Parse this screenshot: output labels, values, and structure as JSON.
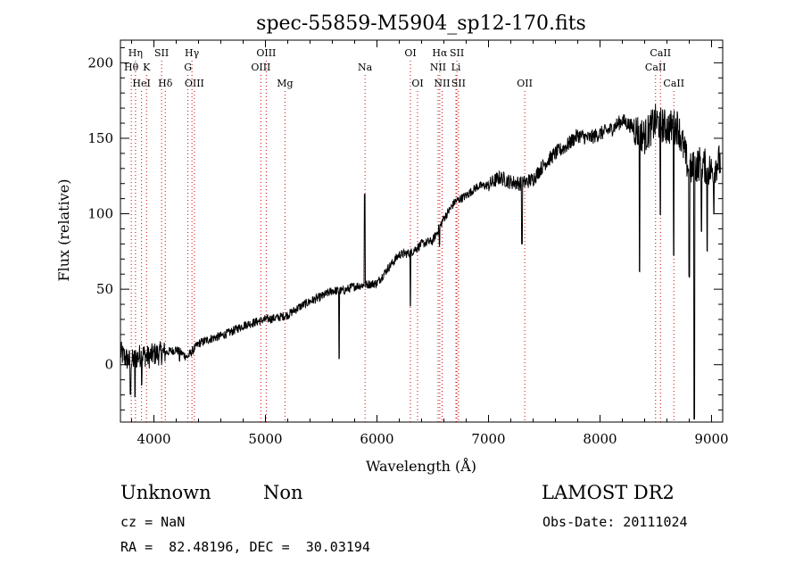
{
  "chart_data": {
    "type": "line",
    "title": "spec-55859-M5904_sp12-170.fits",
    "xlabel": "Wavelength (Å)",
    "ylabel": "Flux (relative)",
    "xlim": [
      3700,
      9100
    ],
    "ylim": [
      -38,
      215
    ],
    "x_ticks": [
      4000,
      5000,
      6000,
      7000,
      8000,
      9000
    ],
    "y_ticks": [
      0,
      50,
      100,
      150,
      200
    ],
    "x_tick_labels": [
      "4000",
      "5000",
      "6000",
      "7000",
      "8000",
      "9000"
    ],
    "y_tick_labels": [
      "0",
      "50",
      "100",
      "150",
      "200"
    ],
    "grid": false,
    "legend": "none",
    "series": [
      {
        "color": "#000000",
        "x": [
          3700,
          3750,
          3800,
          3850,
          3900,
          3950,
          4000,
          4100,
          4200,
          4300,
          4400,
          4500,
          4600,
          4700,
          4800,
          4900,
          5000,
          5100,
          5200,
          5300,
          5400,
          5500,
          5600,
          5700,
          5800,
          5900,
          6000,
          6100,
          6200,
          6300,
          6400,
          6500,
          6600,
          6700,
          6800,
          6900,
          7000,
          7100,
          7200,
          7300,
          7400,
          7500,
          7600,
          7700,
          7800,
          7900,
          8000,
          8100,
          8200,
          8300,
          8400,
          8500,
          8600,
          8700,
          8800,
          8900,
          9000,
          9050
        ],
        "y": [
          8,
          4,
          2,
          5,
          7,
          5,
          7,
          8,
          10,
          5,
          14,
          17,
          19,
          22,
          26,
          28,
          30,
          31,
          33,
          38,
          42,
          45,
          49,
          49,
          52,
          53,
          54,
          64,
          73,
          74,
          80,
          82,
          97,
          108,
          112,
          118,
          119,
          124,
          121,
          120,
          123,
          133,
          140,
          145,
          152,
          150,
          153,
          156,
          162,
          157,
          151,
          161,
          157,
          158,
          128,
          134,
          128,
          134
        ]
      }
    ],
    "spectral_lines": [
      {
        "label": "Hη",
        "wl": 3835,
        "row": 0
      },
      {
        "label": "Hθ",
        "wl": 3797,
        "row": 1
      },
      {
        "label": "K",
        "wl": 3934,
        "row": 1
      },
      {
        "label": "HeI",
        "wl": 3889,
        "row": 2
      },
      {
        "label": "SII",
        "wl": 4069,
        "row": 0
      },
      {
        "label": "Hδ",
        "wl": 4102,
        "row": 2
      },
      {
        "label": "Hγ",
        "wl": 4341,
        "row": 0
      },
      {
        "label": "G",
        "wl": 4305,
        "row": 1
      },
      {
        "label": "OIII",
        "wl": 4363,
        "row": 2
      },
      {
        "label": "OIII",
        "wl": 5007,
        "row": 0
      },
      {
        "label": "OIII",
        "wl": 4959,
        "row": 1
      },
      {
        "label": "Mg",
        "wl": 5175,
        "row": 2
      },
      {
        "label": "Na",
        "wl": 5893,
        "row": 1
      },
      {
        "label": "OI",
        "wl": 6300,
        "row": 0
      },
      {
        "label": "OI",
        "wl": 6364,
        "row": 2
      },
      {
        "label": "Hα",
        "wl": 6563,
        "row": 0
      },
      {
        "label": "NII",
        "wl": 6548,
        "row": 1
      },
      {
        "label": "NII",
        "wl": 6584,
        "row": 2
      },
      {
        "label": "SII",
        "wl": 6717,
        "row": 0
      },
      {
        "label": "Li",
        "wl": 6708,
        "row": 1
      },
      {
        "label": "SII",
        "wl": 6731,
        "row": 2
      },
      {
        "label": "OII",
        "wl": 7325,
        "row": 2
      },
      {
        "label": "CaII",
        "wl": 8542,
        "row": 0
      },
      {
        "label": "CaII",
        "wl": 8498,
        "row": 1
      },
      {
        "label": "CaII",
        "wl": 8662,
        "row": 2
      }
    ],
    "line_color": "#cc0000"
  },
  "info": {
    "class": "Unknown",
    "subclass": "Non",
    "survey": "LAMOST DR2",
    "cz": "cz = NaN",
    "obs_date": "Obs-Date: 20111024",
    "coords": "RA =  82.48196, DEC =  30.03194"
  }
}
